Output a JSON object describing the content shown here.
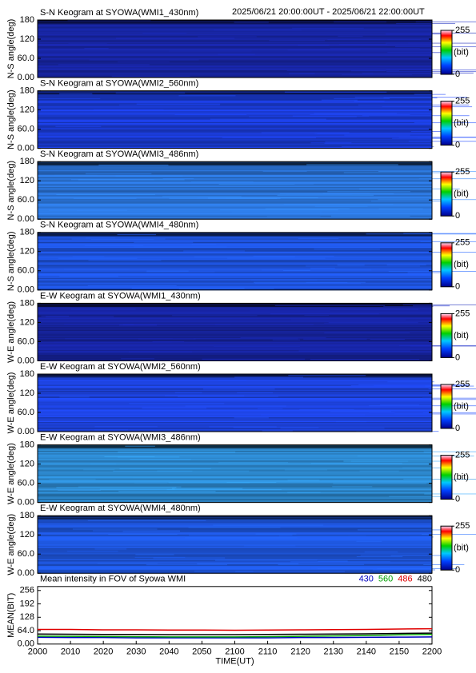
{
  "header": {
    "time_range": "2025/06/21 20:00:00UT - 2025/06/21 22:00:00UT"
  },
  "chart_data": [
    {
      "type": "keogram",
      "title": "S-N Keogram at SYOWA(WMI1_430nm)",
      "ylabel": "N-S angle(deg)",
      "color": "#16239a",
      "ylim": [
        0,
        180
      ],
      "yticks": [
        {
          "value": 0,
          "label": "0.00"
        },
        {
          "value": 60,
          "label": "60.0"
        },
        120,
        180
      ],
      "colorbar": {
        "label": "(bit)",
        "lim": [
          0,
          255
        ],
        "ticks": [
          0,
          255
        ]
      }
    },
    {
      "type": "keogram",
      "title": "S-N Keogram at SYOWA(WMI2_560nm)",
      "ylabel": "N-S angle(deg)",
      "color": "#1a3ad0",
      "ylim": [
        0,
        180
      ],
      "yticks": [
        {
          "value": 0,
          "label": "0.00"
        },
        {
          "value": 60,
          "label": "60.0"
        },
        120,
        180
      ],
      "colorbar": {
        "label": "(bit)",
        "lim": [
          0,
          255
        ],
        "ticks": [
          0,
          255
        ]
      }
    },
    {
      "type": "keogram",
      "title": "S-N Keogram at SYOWA(WMI3_486nm)",
      "ylabel": "N-S angle(deg)",
      "color": "#2a70d0",
      "ylim": [
        0,
        180
      ],
      "yticks": [
        {
          "value": 0,
          "label": "0.00"
        },
        {
          "value": 60,
          "label": "60.0"
        },
        120,
        180
      ],
      "colorbar": {
        "label": "(bit)",
        "lim": [
          0,
          255
        ],
        "ticks": [
          0,
          255
        ]
      }
    },
    {
      "type": "keogram",
      "title": "S-N Keogram at SYOWA(WMI4_480nm)",
      "ylabel": "N-S angle(deg)",
      "color": "#1d50d4",
      "ylim": [
        0,
        180
      ],
      "yticks": [
        {
          "value": 0,
          "label": "0.00"
        },
        {
          "value": 60,
          "label": "60.0"
        },
        120,
        180
      ],
      "colorbar": {
        "label": "(bit)",
        "lim": [
          0,
          255
        ],
        "ticks": [
          0,
          255
        ]
      }
    },
    {
      "type": "keogram",
      "title": "E-W Keogram at SYOWA(WMI1_430nm)",
      "ylabel": "W-E angle(deg)",
      "color": "#16239a",
      "ylim": [
        0,
        180
      ],
      "yticks": [
        {
          "value": 0,
          "label": "0.00"
        },
        {
          "value": 60,
          "label": "60.0"
        },
        120,
        180
      ],
      "colorbar": {
        "label": "(bit)",
        "lim": [
          0,
          255
        ],
        "ticks": [
          0,
          255
        ]
      }
    },
    {
      "type": "keogram",
      "title": "E-W Keogram at SYOWA(WMI2_560nm)",
      "ylabel": "W-E angle(deg)",
      "color": "#1c40d4",
      "ylim": [
        0,
        180
      ],
      "yticks": [
        {
          "value": 0,
          "label": "0.00"
        },
        {
          "value": 60,
          "label": "60.0"
        },
        120,
        180
      ],
      "colorbar": {
        "label": "(bit)",
        "lim": [
          0,
          255
        ],
        "ticks": [
          0,
          255
        ]
      }
    },
    {
      "type": "keogram",
      "title": "E-W Keogram at SYOWA(WMI3_486nm)",
      "ylabel": "W-E angle(deg)",
      "color": "#2b82c4",
      "ylim": [
        0,
        180
      ],
      "yticks": [
        {
          "value": 0,
          "label": "0.00"
        },
        {
          "value": 60,
          "label": "60.0"
        },
        120,
        180
      ],
      "colorbar": {
        "label": "(bit)",
        "lim": [
          0,
          255
        ],
        "ticks": [
          0,
          255
        ]
      }
    },
    {
      "type": "keogram",
      "title": "E-W Keogram at SYOWA(WMI4_480nm)",
      "ylabel": "W-E angle(deg)",
      "color": "#1d52d2",
      "ylim": [
        0,
        180
      ],
      "yticks": [
        {
          "value": 0,
          "label": "0.00"
        },
        {
          "value": 60,
          "label": "60.0"
        },
        120,
        180
      ],
      "colorbar": {
        "label": "(bit)",
        "lim": [
          0,
          255
        ],
        "ticks": [
          0,
          255
        ]
      }
    },
    {
      "type": "line",
      "title": "Mean intensity in FOV of Syowa WMI",
      "ylabel": "MEAN(BIT)",
      "xlabel": "TIME(UT)",
      "categories": [
        "2000",
        "2010",
        "2020",
        "2030",
        "2040",
        "2050",
        "2100",
        "2110",
        "2120",
        "2130",
        "2140",
        "2150",
        "2200"
      ],
      "ylim": [
        0,
        275
      ],
      "yticks": [
        {
          "value": 0,
          "label": "0.00"
        },
        {
          "value": 64,
          "label": "64.0"
        },
        128,
        192,
        256
      ],
      "series": [
        {
          "name": "430",
          "color": "#0000c0",
          "values": [
            32,
            31,
            31,
            30,
            30,
            30,
            30,
            30,
            31,
            31,
            32,
            33,
            34
          ]
        },
        {
          "name": "560",
          "color": "#00a000",
          "values": [
            38,
            37,
            36,
            35,
            34,
            34,
            34,
            35,
            37,
            39,
            41,
            44,
            46
          ]
        },
        {
          "name": "486",
          "color": "#e00000",
          "values": [
            70,
            70,
            68,
            68,
            67,
            67,
            66,
            67,
            68,
            69,
            70,
            72,
            73
          ]
        },
        {
          "name": "480",
          "color": "#000000",
          "values": [
            48,
            47,
            46,
            46,
            45,
            45,
            45,
            46,
            47,
            48,
            49,
            51,
            52
          ]
        }
      ]
    }
  ]
}
